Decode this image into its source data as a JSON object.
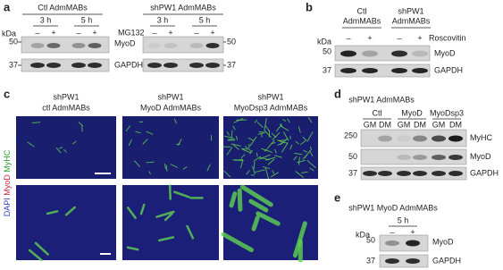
{
  "panel_a": {
    "letter": "a",
    "groups": [
      {
        "label": "Ctl AdmMABs",
        "times": [
          "3 h",
          "5 h"
        ],
        "treatments": [
          "–",
          "+",
          "–",
          "+"
        ]
      },
      {
        "label": "shPW1 AdmMABs",
        "times": [
          "3 h",
          "5 h"
        ],
        "treatments": [
          "–",
          "+",
          "–",
          "+"
        ]
      }
    ],
    "treatment_label": "MG132",
    "kda_label": "kDa",
    "markers_left": [
      50,
      37
    ],
    "markers_right": [
      50,
      37
    ],
    "proteins": [
      "MyoD",
      "GAPDH"
    ]
  },
  "panel_b": {
    "letter": "b",
    "groups": [
      {
        "lines": [
          "Ctl",
          "AdmMABs"
        ]
      },
      {
        "lines": [
          "shPW1",
          "AdmMABs"
        ]
      }
    ],
    "treatments": [
      "–",
      "+",
      "–",
      "+"
    ],
    "treatment_label": "Roscovitin",
    "kda_label": "kDa",
    "markers": [
      50,
      37
    ],
    "proteins": [
      "MyoD",
      "GAPDH"
    ]
  },
  "panel_c": {
    "letter": "c",
    "columns": [
      {
        "lines": [
          "shPW1",
          "ctl AdmMABs"
        ]
      },
      {
        "lines": [
          "shPW1",
          "MyoD AdmMABs"
        ]
      },
      {
        "lines": [
          "shPW1",
          "MyoDsp3 AdmMABs"
        ]
      }
    ],
    "stain_labels": [
      "DAPI",
      "MyoD",
      "MyHC"
    ]
  },
  "panel_d": {
    "letter": "d",
    "title": "shPW1 AdmMABs",
    "groups": [
      "Ctl",
      "MyoD",
      "MyoDsp3"
    ],
    "conditions": [
      "GM",
      "DM",
      "GM",
      "DM",
      "GM",
      "DM"
    ],
    "markers": [
      250,
      50,
      37
    ],
    "proteins": [
      "MyHC",
      "MyoD",
      "GAPDH"
    ]
  },
  "panel_e": {
    "letter": "e",
    "title": "shPW1 MyoD AdmMABs",
    "time": "5 h",
    "treatments": [
      "–",
      "+"
    ],
    "kda_label": "kDa",
    "markers": [
      50,
      37
    ],
    "proteins": [
      "MyoD",
      "GAPDH"
    ]
  }
}
